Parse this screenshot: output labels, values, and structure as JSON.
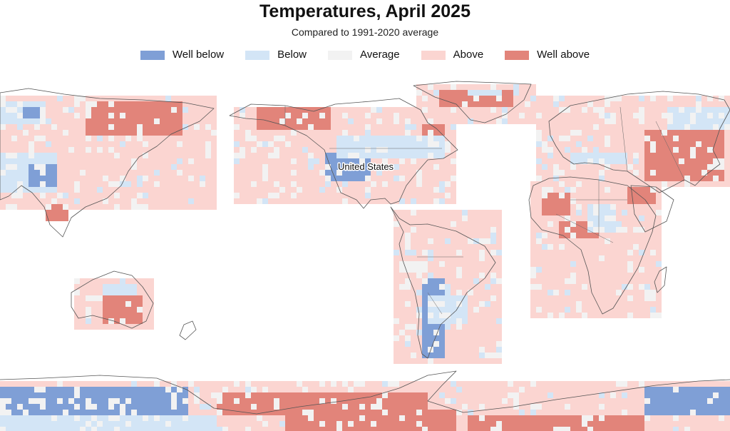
{
  "title": "Temperatures, April 2025",
  "subtitle": "Compared to 1991-2020 average",
  "legend": [
    {
      "key": "well_below",
      "label": "Well below",
      "color": "#7f9fd6"
    },
    {
      "key": "below",
      "label": "Below",
      "color": "#d3e5f6"
    },
    {
      "key": "average",
      "label": "Average",
      "color": "#f2f2f2"
    },
    {
      "key": "above",
      "label": "Above",
      "color": "#fbd5d1"
    },
    {
      "key": "well_above",
      "label": "Well above",
      "color": "#e2847a"
    }
  ],
  "map": {
    "annotation": "United States",
    "background_color": "#ffffff"
  }
}
